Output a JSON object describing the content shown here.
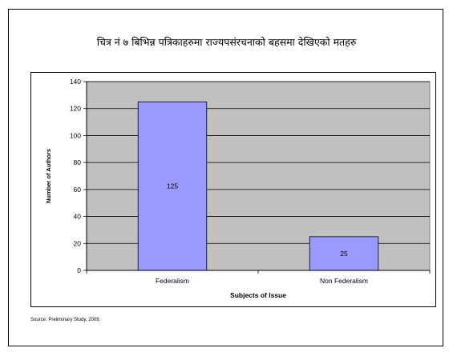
{
  "slide": {
    "title": "चित्र नं ७ बिभिन्न पत्रिकाहरुमा राज्यपसंरचनाको बहसमा देखिएको मतहरु",
    "source": "Source: Preliminary Study, 2009."
  },
  "chart_data": {
    "type": "bar",
    "categories": [
      "Federalism",
      "Non Federalism"
    ],
    "values": [
      125,
      25
    ],
    "data_labels": [
      "125",
      "25"
    ],
    "xlabel": "Subjects of Issue",
    "ylabel": "Number of Authors",
    "ylim": [
      0,
      140
    ],
    "yticks": [
      0,
      20,
      40,
      60,
      80,
      100,
      120,
      140
    ],
    "grid": true,
    "legend": "none",
    "colors": {
      "bar": "#9999ff",
      "plot_bg": "#c0c0c0",
      "grid": "#000000"
    }
  }
}
